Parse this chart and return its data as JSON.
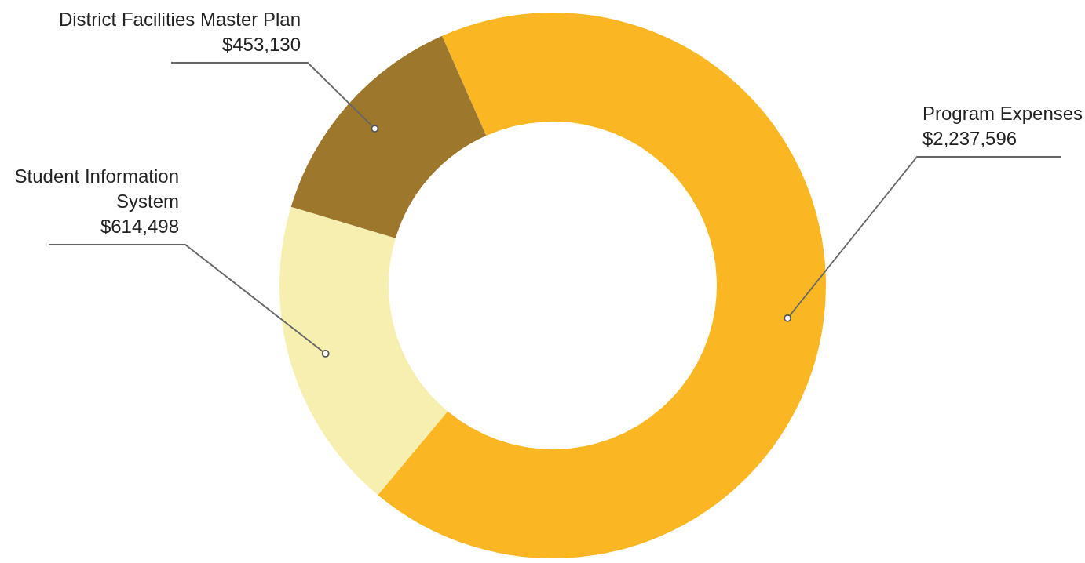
{
  "chart_data": {
    "type": "donut",
    "categories": [
      "Program Expenses",
      "Student Information System",
      "District Facilities Master Plan"
    ],
    "values": [
      2237596,
      614498,
      453130
    ],
    "value_labels": [
      "$2,237,596",
      "$614,498",
      "$453,130"
    ],
    "colors": [
      "#fbb624",
      "#f7efb0",
      "#9c772c"
    ],
    "legend": false
  }
}
